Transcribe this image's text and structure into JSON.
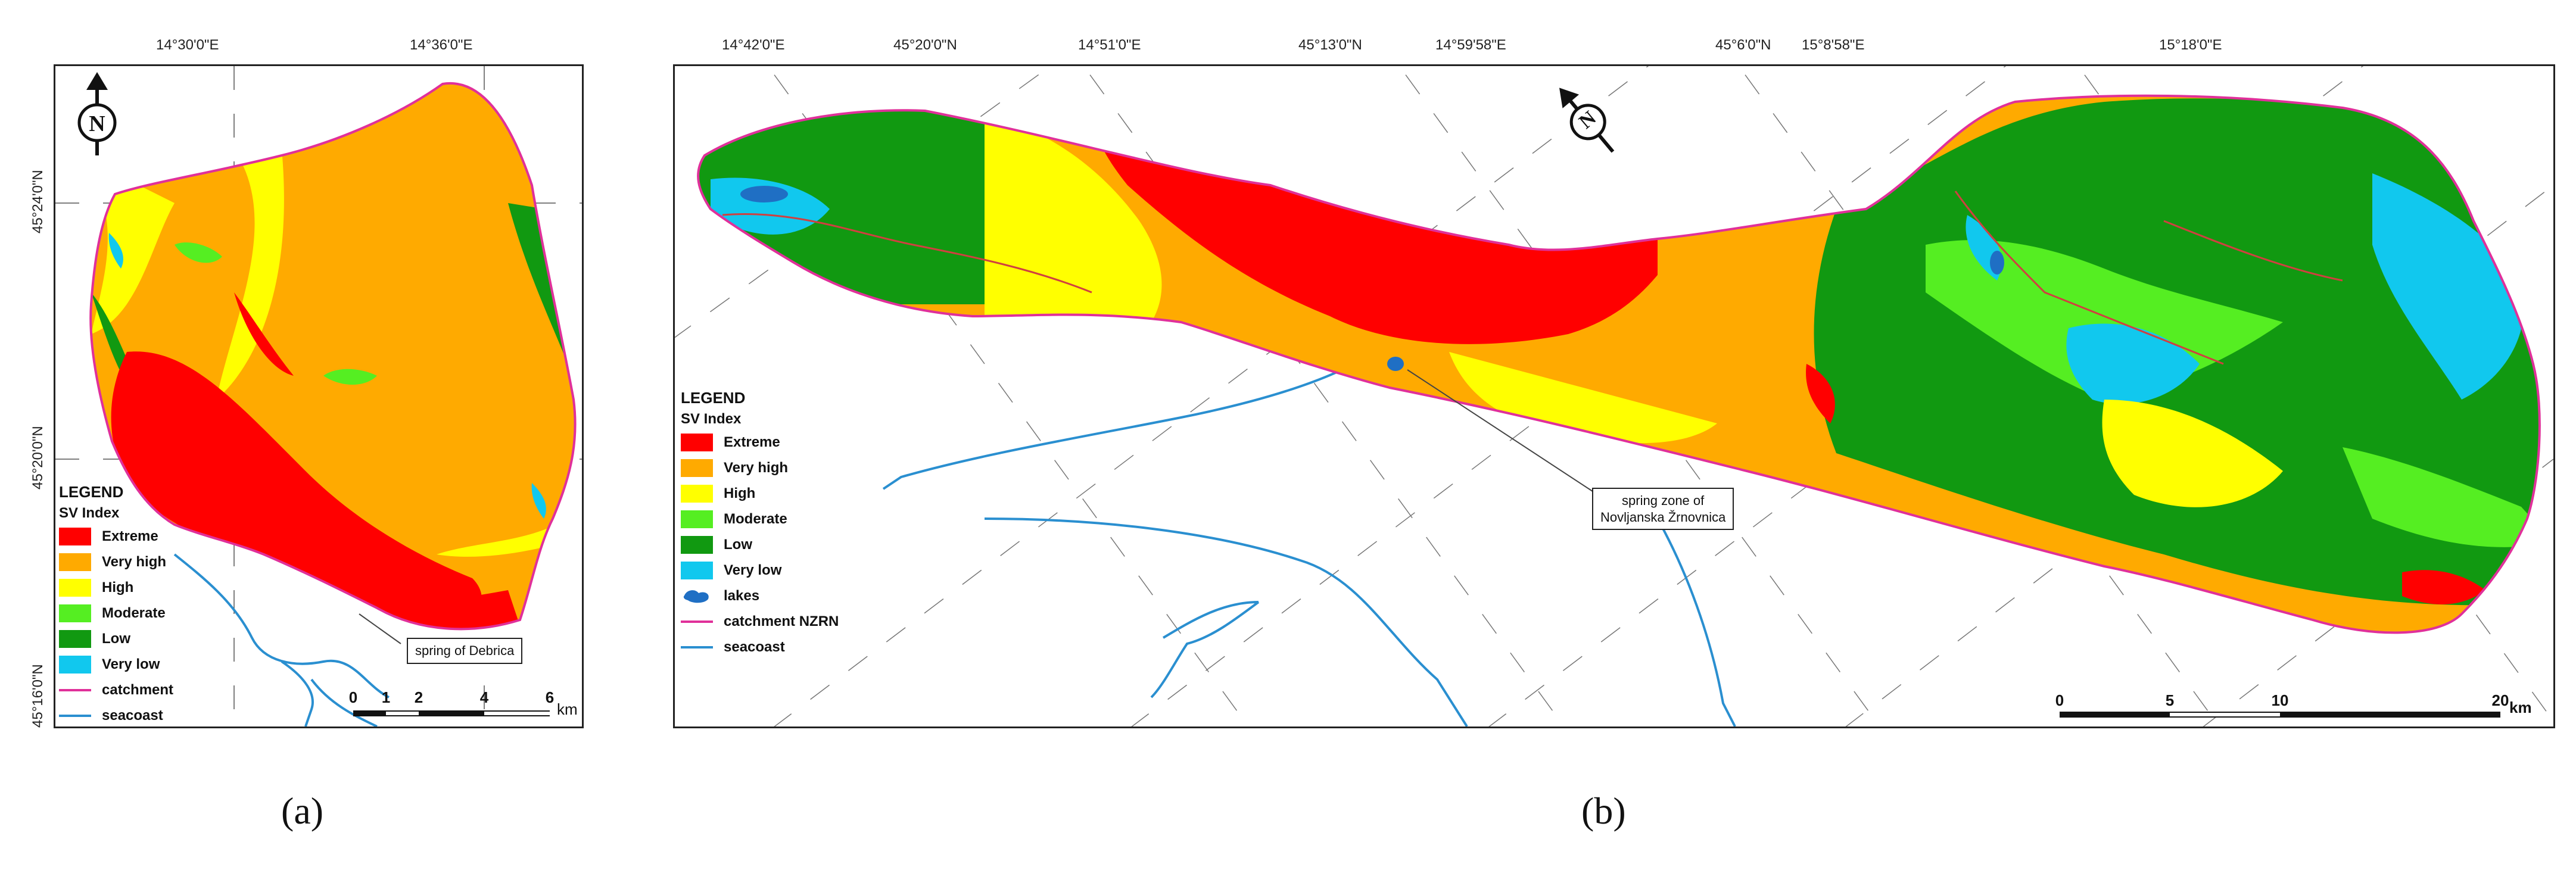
{
  "panel_a": {
    "coords_top": [
      "14°30'0\"E",
      "14°36'0\"E"
    ],
    "coords_left": [
      "45°24'0\"N",
      "45°20'0\"N",
      "45°16'0\"N"
    ],
    "north_label": "N",
    "legend": {
      "title": "LEGEND",
      "subtitle": "SV Index",
      "items": [
        {
          "label": "Extreme",
          "color": "#ff0000"
        },
        {
          "label": "Very high",
          "color": "#ffaa00"
        },
        {
          "label": "High",
          "color": "#ffff00"
        },
        {
          "label": "Moderate",
          "color": "#55ee22"
        },
        {
          "label": "Low",
          "color": "#119911"
        },
        {
          "label": "Very low",
          "color": "#11c8ee"
        }
      ],
      "lines": [
        {
          "label": "catchment",
          "color": "#e0309a"
        },
        {
          "label": "seacoast",
          "color": "#2a8fd0"
        }
      ]
    },
    "callout": "spring of Debrica",
    "scale": {
      "ticks": [
        "0",
        "1",
        "2",
        "4",
        "6"
      ],
      "unit": "km"
    },
    "caption": "(a)"
  },
  "panel_b": {
    "coords_top": [
      "14°42'0\"E",
      "45°20'0\"N",
      "14°51'0\"E",
      "45°13'0\"N",
      "14°59'58\"E",
      "45°6'0\"N",
      "15°8'58\"E",
      "15°18'0\"E"
    ],
    "north_label": "N",
    "legend": {
      "title": "LEGEND",
      "subtitle": "SV Index",
      "items": [
        {
          "label": "Extreme",
          "color": "#ff0000"
        },
        {
          "label": "Very high",
          "color": "#ffaa00"
        },
        {
          "label": "High",
          "color": "#ffff00"
        },
        {
          "label": "Moderate",
          "color": "#55ee22"
        },
        {
          "label": "Low",
          "color": "#119911"
        },
        {
          "label": "Very low",
          "color": "#11c8ee"
        }
      ],
      "lakes": {
        "label": "lakes",
        "color": "#1f6fc4"
      },
      "lines": [
        {
          "label": "catchment NZRN",
          "color": "#e0309a"
        },
        {
          "label": "seacoast",
          "color": "#2a8fd0"
        }
      ]
    },
    "callout": [
      "spring zone of",
      "Novljanska Žrnovnica"
    ],
    "scale": {
      "ticks": [
        "0",
        "5",
        "10",
        "20"
      ],
      "unit": "km"
    },
    "caption": "(b)"
  }
}
